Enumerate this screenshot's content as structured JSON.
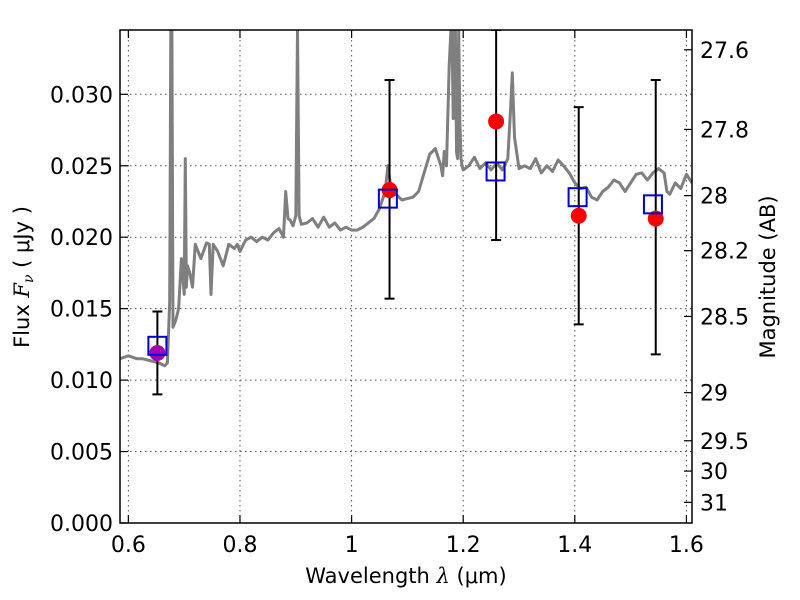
{
  "chart_data": {
    "type": "scatter",
    "xlabel_prefix": "Wavelength  ",
    "xlabel_symbol": "λ",
    "xlabel_unit": " (μm)",
    "ylabel_prefix": "Flux  ",
    "ylabel_symbol": "F",
    "ylabel_subscript": "ν",
    "ylabel_unit": "  ( μJy )",
    "y2label": "Magnitude (AB)",
    "xlim": [
      0.585,
      1.61
    ],
    "ylim": [
      0.0,
      0.0345
    ],
    "grid": true,
    "x_ticks": [
      {
        "value": 0.6,
        "label": "0.6"
      },
      {
        "value": 0.8,
        "label": "0.8"
      },
      {
        "value": 1.0,
        "label": "1"
      },
      {
        "value": 1.2,
        "label": "1.2"
      },
      {
        "value": 1.4,
        "label": "1.4"
      },
      {
        "value": 1.6,
        "label": "1.6"
      }
    ],
    "y_ticks": [
      {
        "value": 0.0,
        "label": "0.000"
      },
      {
        "value": 0.005,
        "label": "0.005"
      },
      {
        "value": 0.01,
        "label": "0.010"
      },
      {
        "value": 0.015,
        "label": "0.015"
      },
      {
        "value": 0.02,
        "label": "0.020"
      },
      {
        "value": 0.025,
        "label": "0.025"
      },
      {
        "value": 0.03,
        "label": "0.030"
      }
    ],
    "magnitude_ticks": [
      {
        "value": 27.6,
        "label": "27.6"
      },
      {
        "value": 27.8,
        "label": "27.8"
      },
      {
        "value": 28.0,
        "label": "28"
      },
      {
        "value": 28.2,
        "label": "28.2"
      },
      {
        "value": 28.5,
        "label": "28.5"
      },
      {
        "value": 29.0,
        "label": "29"
      },
      {
        "value": 29.5,
        "label": "29.5"
      },
      {
        "value": 30.0,
        "label": "30"
      },
      {
        "value": 31.0,
        "label": "31"
      }
    ],
    "observed_points": [
      {
        "x": 0.652,
        "y": 0.0119,
        "yerr_low": 0.009,
        "yerr_high": 0.0148,
        "color": "#a000b0"
      },
      {
        "x": 1.068,
        "y": 0.0233,
        "yerr_low": 0.0157,
        "yerr_high": 0.031,
        "color": "#ff0000"
      },
      {
        "x": 1.259,
        "y": 0.0281,
        "yerr_low": 0.0198,
        "yerr_high": 0.0345,
        "color": "#ff0000"
      },
      {
        "x": 1.407,
        "y": 0.0215,
        "yerr_low": 0.0139,
        "yerr_high": 0.0291,
        "color": "#ff0000"
      },
      {
        "x": 1.545,
        "y": 0.0213,
        "yerr_low": 0.0118,
        "yerr_high": 0.031,
        "color": "#ff0000"
      }
    ],
    "model_points": [
      {
        "x": 0.652,
        "y": 0.0124
      },
      {
        "x": 1.065,
        "y": 0.0227
      },
      {
        "x": 1.258,
        "y": 0.0246
      },
      {
        "x": 1.405,
        "y": 0.0228
      },
      {
        "x": 1.54,
        "y": 0.0223
      }
    ],
    "spectrum": {
      "x": [
        0.585,
        0.6,
        0.615,
        0.625,
        0.635,
        0.645,
        0.655,
        0.665,
        0.67,
        0.674,
        0.676,
        0.678,
        0.68,
        0.685,
        0.69,
        0.695,
        0.7,
        0.702,
        0.704,
        0.706,
        0.71,
        0.715,
        0.72,
        0.73,
        0.74,
        0.745,
        0.748,
        0.752,
        0.76,
        0.77,
        0.78,
        0.79,
        0.795,
        0.8,
        0.81,
        0.82,
        0.83,
        0.84,
        0.85,
        0.86,
        0.87,
        0.878,
        0.882,
        0.886,
        0.89,
        0.895,
        0.9,
        0.903,
        0.906,
        0.91,
        0.92,
        0.93,
        0.94,
        0.95,
        0.96,
        0.97,
        0.98,
        0.99,
        1.0,
        1.01,
        1.02,
        1.03,
        1.04,
        1.05,
        1.06,
        1.065,
        1.07,
        1.08,
        1.09,
        1.1,
        1.11,
        1.12,
        1.13,
        1.14,
        1.15,
        1.16,
        1.163,
        1.166,
        1.17,
        1.175,
        1.178,
        1.18,
        1.182,
        1.184,
        1.186,
        1.188,
        1.19,
        1.192,
        1.194,
        1.196,
        1.198,
        1.2,
        1.21,
        1.22,
        1.23,
        1.24,
        1.25,
        1.26,
        1.27,
        1.28,
        1.285,
        1.288,
        1.292,
        1.3,
        1.31,
        1.32,
        1.33,
        1.34,
        1.35,
        1.36,
        1.37,
        1.38,
        1.39,
        1.4,
        1.41,
        1.42,
        1.43,
        1.44,
        1.45,
        1.46,
        1.47,
        1.48,
        1.49,
        1.5,
        1.51,
        1.52,
        1.53,
        1.54,
        1.55,
        1.56,
        1.565,
        1.57,
        1.58,
        1.59,
        1.6,
        1.61
      ],
      "y": [
        0.0115,
        0.0117,
        0.0115,
        0.0115,
        0.0114,
        0.0113,
        0.0112,
        0.011,
        0.0112,
        0.0155,
        0.0345,
        0.0345,
        0.0137,
        0.0142,
        0.015,
        0.0185,
        0.016,
        0.0255,
        0.0165,
        0.018,
        0.0175,
        0.0165,
        0.0195,
        0.0185,
        0.0196,
        0.0195,
        0.016,
        0.0195,
        0.019,
        0.018,
        0.0195,
        0.0192,
        0.0195,
        0.019,
        0.0198,
        0.02,
        0.0197,
        0.02,
        0.0198,
        0.0203,
        0.0206,
        0.02,
        0.0232,
        0.0213,
        0.0212,
        0.0208,
        0.0215,
        0.0345,
        0.0215,
        0.0209,
        0.021,
        0.0213,
        0.0207,
        0.0214,
        0.0207,
        0.021,
        0.0205,
        0.0207,
        0.0205,
        0.0205,
        0.0207,
        0.021,
        0.0213,
        0.022,
        0.0232,
        0.025,
        0.0236,
        0.023,
        0.0226,
        0.0227,
        0.0228,
        0.0232,
        0.0245,
        0.0258,
        0.0262,
        0.025,
        0.0243,
        0.026,
        0.025,
        0.032,
        0.0345,
        0.0345,
        0.0283,
        0.0345,
        0.0345,
        0.026,
        0.0255,
        0.0345,
        0.028,
        0.0255,
        0.025,
        0.0247,
        0.025,
        0.0256,
        0.0248,
        0.0252,
        0.0247,
        0.0252,
        0.0247,
        0.0255,
        0.029,
        0.0315,
        0.027,
        0.0248,
        0.025,
        0.0248,
        0.0255,
        0.0245,
        0.025,
        0.0246,
        0.0254,
        0.025,
        0.0245,
        0.0238,
        0.0234,
        0.0235,
        0.0228,
        0.0226,
        0.0232,
        0.0235,
        0.024,
        0.0238,
        0.0232,
        0.0238,
        0.0244,
        0.0245,
        0.024,
        0.0245,
        0.0248,
        0.0245,
        0.0232,
        0.023,
        0.0238,
        0.0234,
        0.0244,
        0.0238
      ]
    },
    "colors": {
      "spectrum": "#7f7f7f",
      "model_marker": "#0000cc",
      "errorbar": "#000000",
      "grid": "#555555"
    }
  }
}
